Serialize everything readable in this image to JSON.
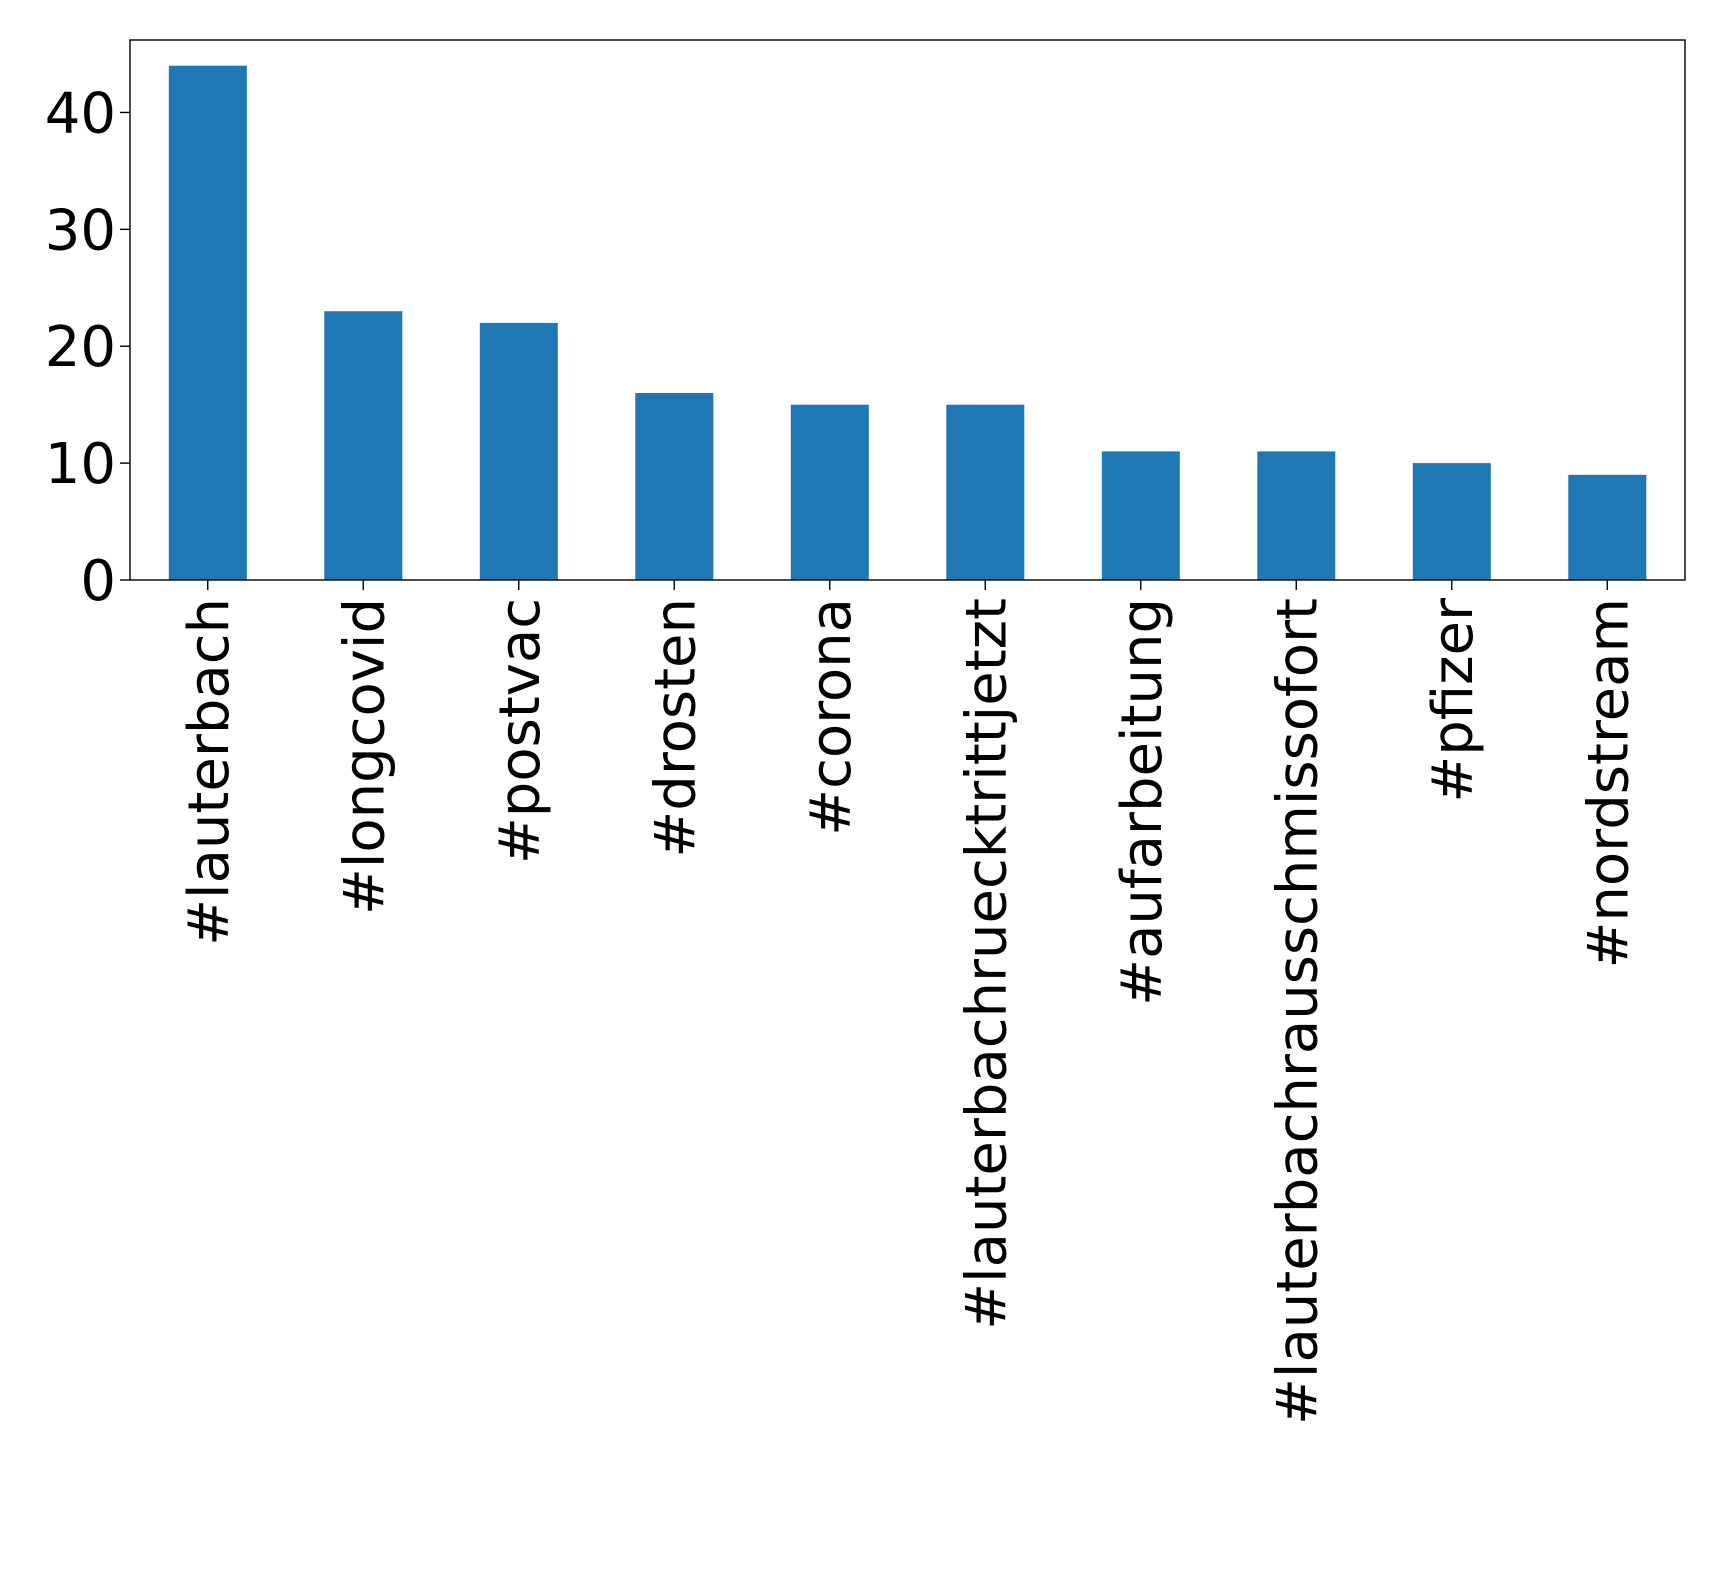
{
  "chart_data": {
    "type": "bar",
    "title": "",
    "xlabel": "",
    "ylabel": "",
    "categories": [
      "#lauterbach",
      "#longcovid",
      "#postvac",
      "#drosten",
      "#corona",
      "#lauterbachruecktrittjetzt",
      "#aufarbeitung",
      "#lauterbachrausschmissofort",
      "#pfizer",
      "#nordstream"
    ],
    "values": [
      44,
      23,
      22,
      16,
      15,
      15,
      11,
      11,
      10,
      9
    ],
    "ylim": [
      0,
      46.2
    ],
    "yticks": [
      0,
      10,
      20,
      30,
      40
    ],
    "grid": false,
    "bar_color": "#1f77b4"
  }
}
